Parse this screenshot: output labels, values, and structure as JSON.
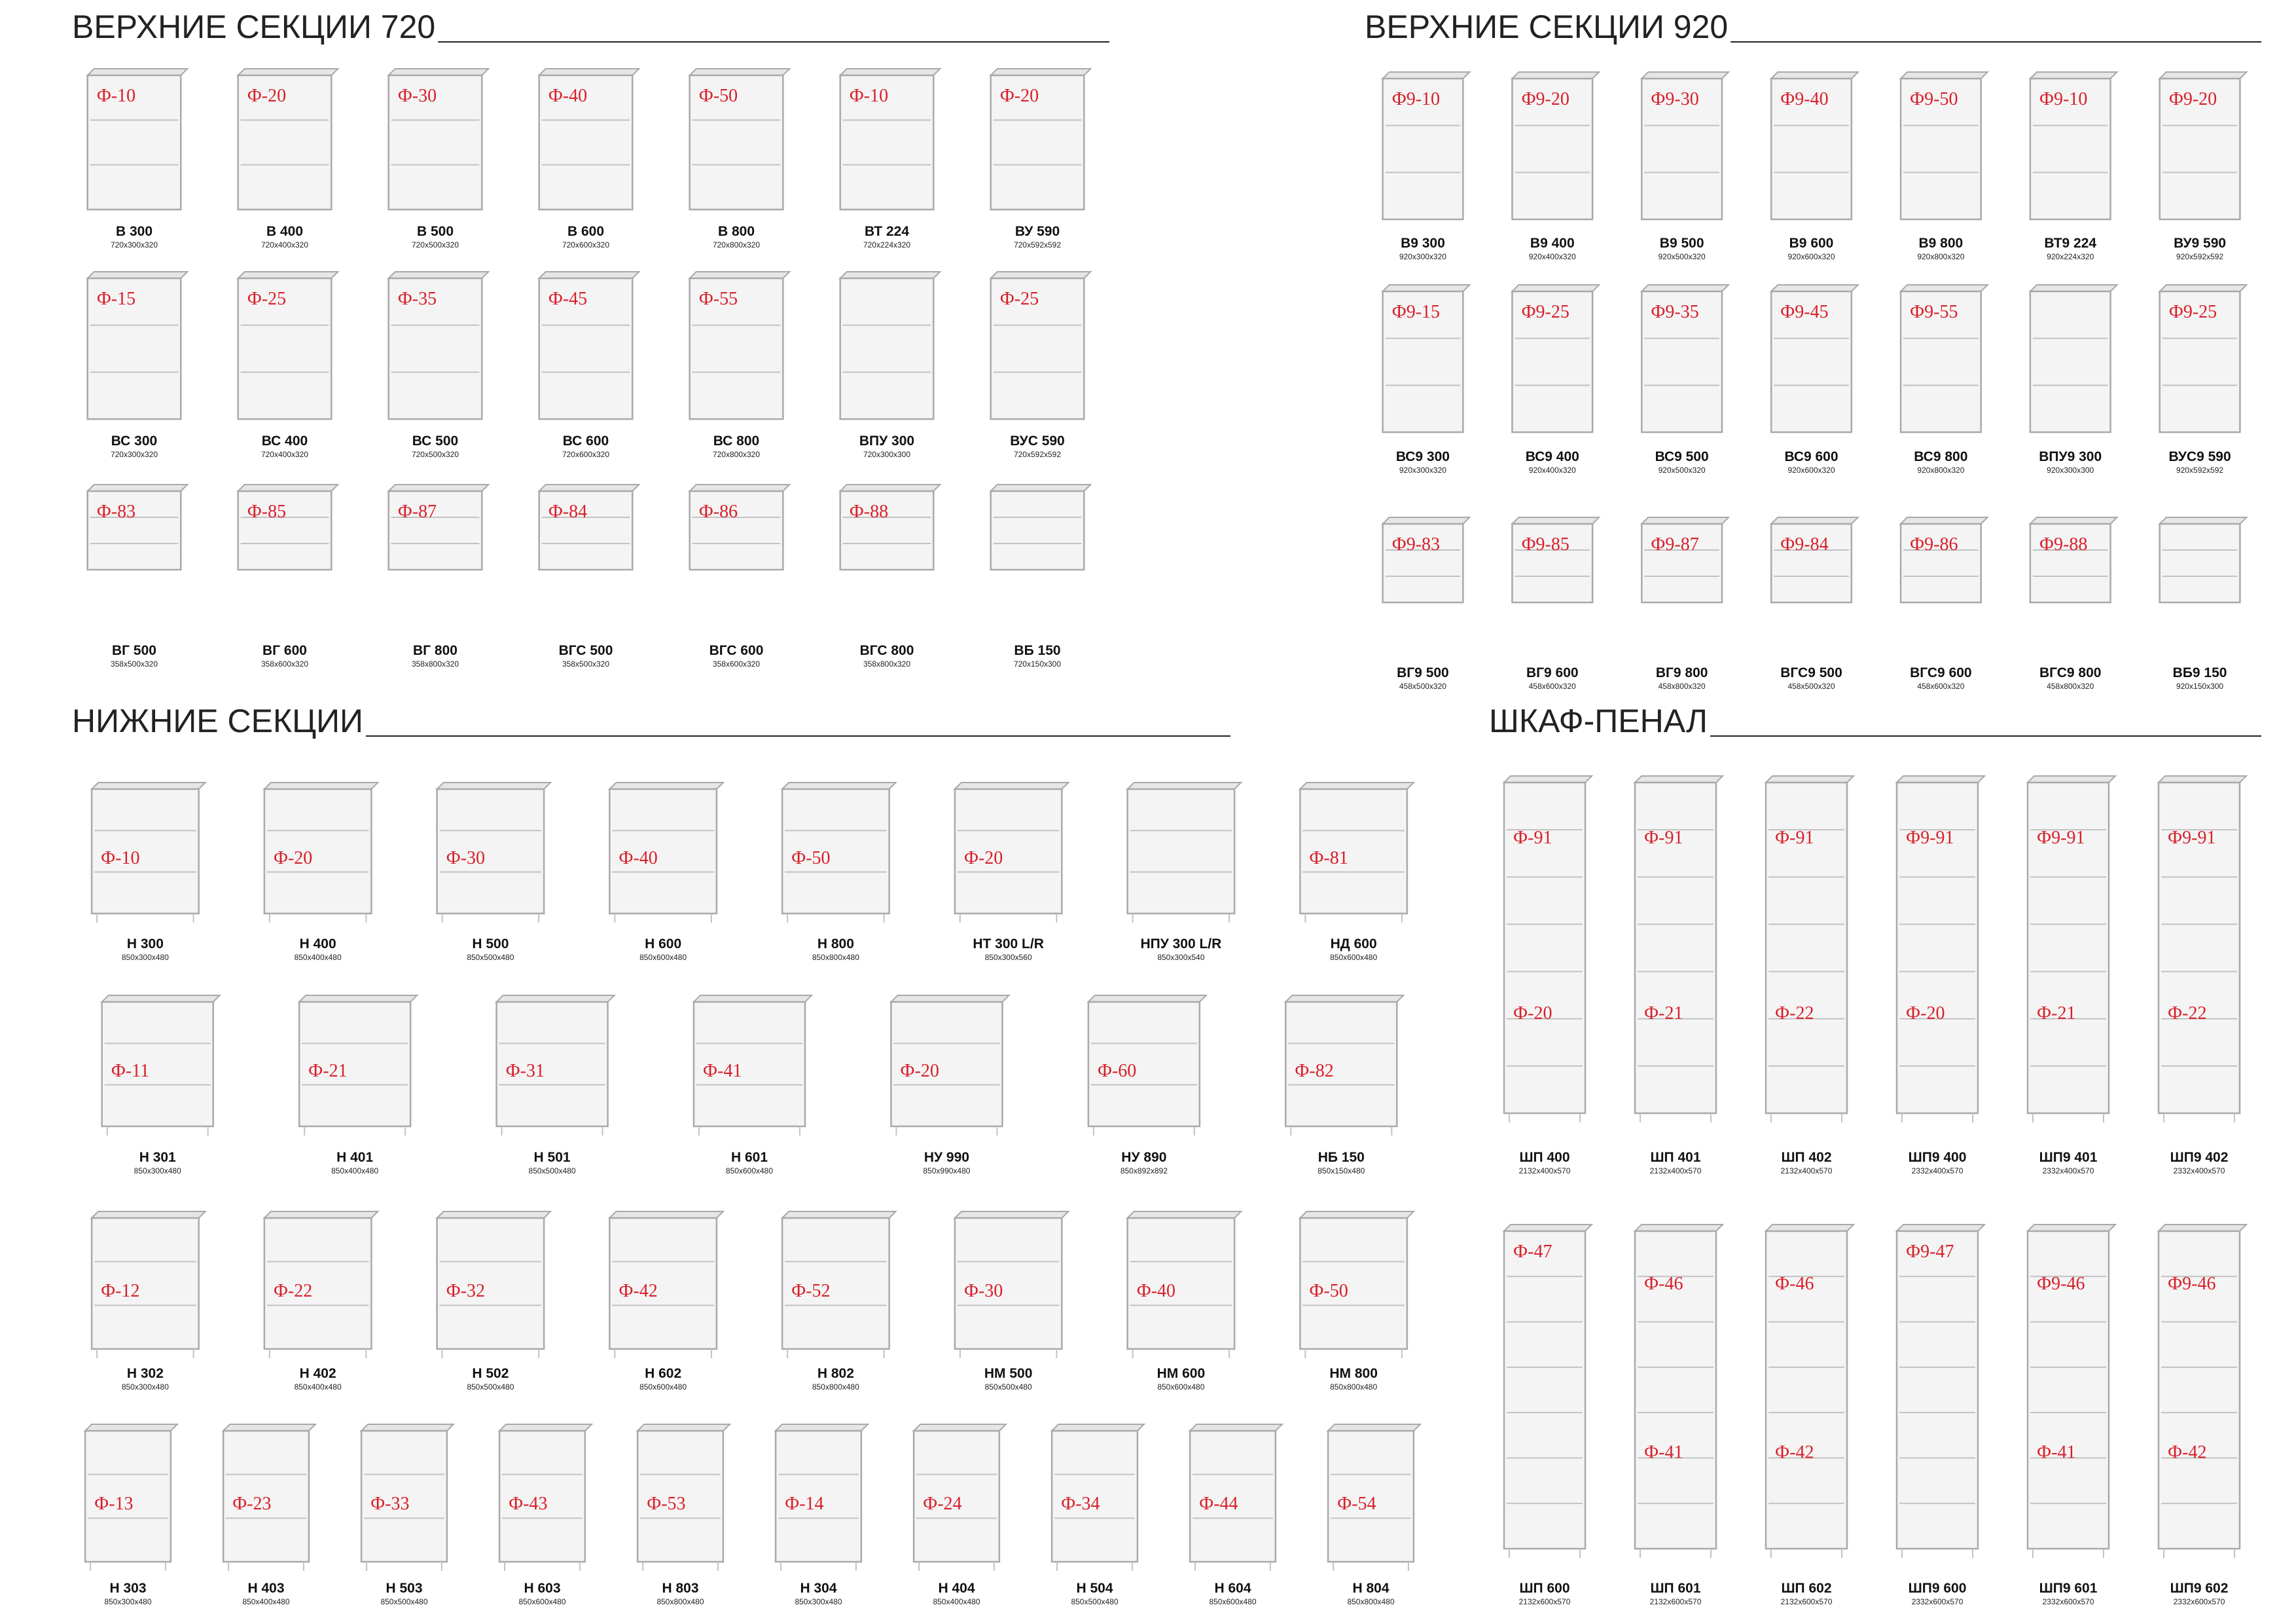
{
  "sections": [
    {
      "title": "ВЕРХНИЕ СЕКЦИИ 720",
      "rows": [
        [
          {
            "codes": [
              "Ф-10"
            ],
            "name": "В 300",
            "size": "720x300x320"
          },
          {
            "codes": [
              "Ф-20"
            ],
            "name": "В 400",
            "size": "720x400x320"
          },
          {
            "codes": [
              "Ф-30"
            ],
            "name": "В 500",
            "size": "720x500x320"
          },
          {
            "codes": [
              "Ф-40"
            ],
            "name": "В 600",
            "size": "720x600x320"
          },
          {
            "codes": [
              "Ф-50"
            ],
            "name": "В 800",
            "size": "720x800x320"
          },
          {
            "codes": [
              "Ф-10"
            ],
            "name": "ВТ 224",
            "size": "720x224x320"
          },
          {
            "codes": [
              "Ф-20"
            ],
            "name": "ВУ 590",
            "size": "720x592x592"
          }
        ],
        [
          {
            "codes": [
              "Ф-15"
            ],
            "name": "ВС 300",
            "size": "720x300x320"
          },
          {
            "codes": [
              "Ф-25"
            ],
            "name": "ВС 400",
            "size": "720x400x320"
          },
          {
            "codes": [
              "Ф-35"
            ],
            "name": "ВС 500",
            "size": "720x500x320"
          },
          {
            "codes": [
              "Ф-45"
            ],
            "name": "ВС 600",
            "size": "720x600x320"
          },
          {
            "codes": [
              "Ф-55"
            ],
            "name": "ВС 800",
            "size": "720x800x320"
          },
          {
            "codes": [],
            "name": "ВПУ 300",
            "size": "720x300x300"
          },
          {
            "codes": [
              "Ф-25"
            ],
            "name": "ВУС 590",
            "size": "720x592x592"
          }
        ],
        [
          {
            "codes": [
              "Ф-83"
            ],
            "name": "ВГ 500",
            "size": "358x500x320"
          },
          {
            "codes": [
              "Ф-85"
            ],
            "name": "ВГ 600",
            "size": "358x600x320"
          },
          {
            "codes": [
              "Ф-87"
            ],
            "name": "ВГ 800",
            "size": "358x800x320"
          },
          {
            "codes": [
              "Ф-84"
            ],
            "name": "ВГС 500",
            "size": "358x500x320"
          },
          {
            "codes": [
              "Ф-86"
            ],
            "name": "ВГС 600",
            "size": "358x600x320"
          },
          {
            "codes": [
              "Ф-88"
            ],
            "name": "ВГС 800",
            "size": "358x800x320"
          },
          {
            "codes": [],
            "name": "ВБ 150",
            "size": "720x150x300"
          }
        ]
      ]
    },
    {
      "title": "ВЕРХНИЕ СЕКЦИИ 920",
      "rows": [
        [
          {
            "codes": [
              "Ф9-10"
            ],
            "name": "В9 300",
            "size": "920x300x320"
          },
          {
            "codes": [
              "Ф9-20"
            ],
            "name": "В9 400",
            "size": "920x400x320"
          },
          {
            "codes": [
              "Ф9-30"
            ],
            "name": "В9 500",
            "size": "920x500x320"
          },
          {
            "codes": [
              "Ф9-40"
            ],
            "name": "В9 600",
            "size": "920x600x320"
          },
          {
            "codes": [
              "Ф9-50"
            ],
            "name": "В9 800",
            "size": "920x800x320"
          },
          {
            "codes": [
              "Ф9-10"
            ],
            "name": "ВТ9 224",
            "size": "920x224x320"
          },
          {
            "codes": [
              "Ф9-20"
            ],
            "name": "ВУ9 590",
            "size": "920x592x592"
          }
        ],
        [
          {
            "codes": [
              "Ф9-15"
            ],
            "name": "ВС9 300",
            "size": "920x300x320"
          },
          {
            "codes": [
              "Ф9-25"
            ],
            "name": "ВС9 400",
            "size": "920x400x320"
          },
          {
            "codes": [
              "Ф9-35"
            ],
            "name": "ВС9 500",
            "size": "920x500x320"
          },
          {
            "codes": [
              "Ф9-45"
            ],
            "name": "ВС9 600",
            "size": "920x600x320"
          },
          {
            "codes": [
              "Ф9-55"
            ],
            "name": "ВС9 800",
            "size": "920x800x320"
          },
          {
            "codes": [],
            "name": "ВПУ9 300",
            "size": "920x300x300"
          },
          {
            "codes": [
              "Ф9-25"
            ],
            "name": "ВУС9 590",
            "size": "920x592x592"
          }
        ],
        [
          {
            "codes": [
              "Ф9-83"
            ],
            "name": "ВГ9 500",
            "size": "458x500x320"
          },
          {
            "codes": [
              "Ф9-85"
            ],
            "name": "ВГ9 600",
            "size": "458x600x320"
          },
          {
            "codes": [
              "Ф9-87"
            ],
            "name": "ВГ9 800",
            "size": "458x800x320"
          },
          {
            "codes": [
              "Ф9-84"
            ],
            "name": "ВГС9 500",
            "size": "458x500x320"
          },
          {
            "codes": [
              "Ф9-86"
            ],
            "name": "ВГС9 600",
            "size": "458x600x320"
          },
          {
            "codes": [
              "Ф9-88"
            ],
            "name": "ВГС9 800",
            "size": "458x800x320"
          },
          {
            "codes": [],
            "name": "ВБ9 150",
            "size": "920x150x300"
          }
        ]
      ]
    },
    {
      "title": "НИЖНИЕ СЕКЦИИ",
      "rows": [
        [
          {
            "codes": [
              "Ф-10"
            ],
            "name": "Н 300",
            "size": "850x300x480"
          },
          {
            "codes": [
              "Ф-20"
            ],
            "name": "Н 400",
            "size": "850x400x480"
          },
          {
            "codes": [
              "Ф-30"
            ],
            "name": "Н 500",
            "size": "850x500x480"
          },
          {
            "codes": [
              "Ф-40"
            ],
            "name": "Н 600",
            "size": "850x600x480"
          },
          {
            "codes": [
              "Ф-50"
            ],
            "name": "Н 800",
            "size": "850x800x480"
          },
          {
            "codes": [
              "Ф-20"
            ],
            "name": "НТ 300 L/R",
            "size": "850x300x560"
          },
          {
            "codes": [],
            "name": "НПУ 300 L/R",
            "size": "850x300x540"
          },
          {
            "codes": [
              "Ф-81"
            ],
            "name": "НД 600",
            "size": "850x600x480"
          }
        ],
        [
          {
            "codes": [
              "Ф-11"
            ],
            "name": "Н 301",
            "size": "850x300x480"
          },
          {
            "codes": [
              "Ф-21"
            ],
            "name": "Н 401",
            "size": "850x400x480"
          },
          {
            "codes": [
              "Ф-31"
            ],
            "name": "Н 501",
            "size": "850x500x480"
          },
          {
            "codes": [
              "Ф-41"
            ],
            "name": "Н 601",
            "size": "850x600x480"
          },
          {
            "codes": [
              "Ф-20"
            ],
            "name": "НУ 990",
            "size": "850x990x480"
          },
          {
            "codes": [
              "Ф-60"
            ],
            "name": "НУ 890",
            "size": "850x892x892"
          },
          {
            "codes": [
              "Ф-82"
            ],
            "name": "НБ 150",
            "size": "850x150x480"
          }
        ],
        [
          {
            "codes": [
              "Ф-12"
            ],
            "name": "Н 302",
            "size": "850x300x480"
          },
          {
            "codes": [
              "Ф-22"
            ],
            "name": "Н 402",
            "size": "850x400x480"
          },
          {
            "codes": [
              "Ф-32"
            ],
            "name": "Н 502",
            "size": "850x500x480"
          },
          {
            "codes": [
              "Ф-42"
            ],
            "name": "Н 602",
            "size": "850x600x480"
          },
          {
            "codes": [
              "Ф-52"
            ],
            "name": "Н 802",
            "size": "850x800x480"
          },
          {
            "codes": [
              "Ф-30"
            ],
            "name": "НМ 500",
            "size": "850x500x480"
          },
          {
            "codes": [
              "Ф-40"
            ],
            "name": "НМ 600",
            "size": "850x600x480"
          },
          {
            "codes": [
              "Ф-50"
            ],
            "name": "НМ 800",
            "size": "850x800x480"
          }
        ],
        [
          {
            "codes": [
              "Ф-13"
            ],
            "name": "Н 303",
            "size": "850x300x480"
          },
          {
            "codes": [
              "Ф-23"
            ],
            "name": "Н 403",
            "size": "850x400x480"
          },
          {
            "codes": [
              "Ф-33"
            ],
            "name": "Н 503",
            "size": "850x500x480"
          },
          {
            "codes": [
              "Ф-43"
            ],
            "name": "Н 603",
            "size": "850x600x480"
          },
          {
            "codes": [
              "Ф-53"
            ],
            "name": "Н 803",
            "size": "850x800x480"
          },
          {
            "codes": [
              "Ф-14"
            ],
            "name": "Н 304",
            "size": "850x300x480"
          },
          {
            "codes": [
              "Ф-24"
            ],
            "name": "Н 404",
            "size": "850x400x480"
          },
          {
            "codes": [
              "Ф-34"
            ],
            "name": "Н 504",
            "size": "850x500x480"
          },
          {
            "codes": [
              "Ф-44"
            ],
            "name": "Н 604",
            "size": "850x600x480"
          },
          {
            "codes": [
              "Ф-54"
            ],
            "name": "Н 804",
            "size": "850x800x480"
          }
        ]
      ]
    },
    {
      "title": "ШКАФ-ПЕНАЛ",
      "rows": [
        [
          {
            "codes": [
              "Ф-91",
              "Ф-20"
            ],
            "name": "ШП 400",
            "size": "2132x400x570"
          },
          {
            "codes": [
              "Ф-91",
              "Ф-21"
            ],
            "name": "ШП 401",
            "size": "2132x400x570"
          },
          {
            "codes": [
              "Ф-91",
              "Ф-22"
            ],
            "name": "ШП 402",
            "size": "2132x400x570"
          },
          {
            "codes": [
              "Ф9-91",
              "Ф-20"
            ],
            "name": "ШП9 400",
            "size": "2332x400x570"
          },
          {
            "codes": [
              "Ф9-91",
              "Ф-21"
            ],
            "name": "ШП9 401",
            "size": "2332x400x570"
          },
          {
            "codes": [
              "Ф9-91",
              "Ф-22"
            ],
            "name": "ШП9 402",
            "size": "2332x400x570"
          }
        ],
        [
          {
            "codes": [
              "Ф-47"
            ],
            "name": "ШП 600",
            "size": "2132x600x570"
          },
          {
            "codes": [
              "Ф-46",
              "Ф-41"
            ],
            "name": "ШП 601",
            "size": "2132x600x570"
          },
          {
            "codes": [
              "Ф-46",
              "Ф-42"
            ],
            "name": "ШП 602",
            "size": "2132x600x570"
          },
          {
            "codes": [
              "Ф9-47"
            ],
            "name": "ШП9 600",
            "size": "2332x600x570"
          },
          {
            "codes": [
              "Ф9-46",
              "Ф-41"
            ],
            "name": "ШП9 601",
            "size": "2332x600x570"
          },
          {
            "codes": [
              "Ф9-46",
              "Ф-42"
            ],
            "name": "ШП9 602",
            "size": "2332x600x570"
          }
        ]
      ]
    }
  ]
}
